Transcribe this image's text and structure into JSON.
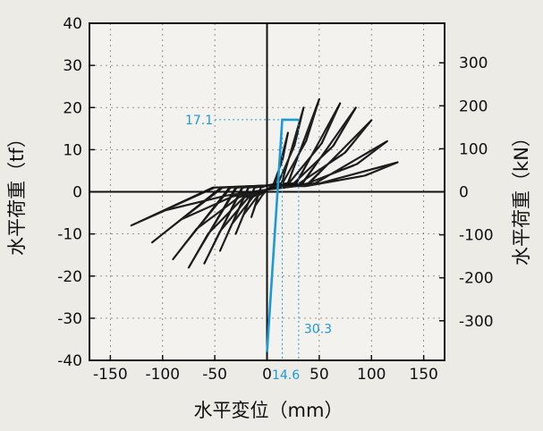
{
  "chart_data": {
    "type": "line",
    "xlabel": "水平変位（mm）",
    "ylabel_left": "水平荷重（tf）",
    "ylabel_right": "水平荷重（kN）",
    "xlim": [
      -170,
      170
    ],
    "ylim_left": [
      -40,
      40
    ],
    "ylim_right": [
      -392,
      392
    ],
    "x_ticks": [
      -150,
      -100,
      -50,
      0,
      50,
      100,
      150
    ],
    "x_tick_labels": [
      "-150",
      "-100",
      "-50",
      "0",
      "50",
      "100",
      "150"
    ],
    "y_ticks_left": [
      -40,
      -30,
      -20,
      -10,
      0,
      10,
      20,
      30,
      40
    ],
    "y_tick_labels_left": [
      "-40",
      "-30",
      "-20",
      "-10",
      "0",
      "10",
      "20",
      "30",
      "40"
    ],
    "y_ticks_right": [
      -300,
      -200,
      -100,
      0,
      100,
      200,
      300
    ],
    "y_tick_labels_right": [
      "-300",
      "-200",
      "-100",
      "0",
      "100",
      "200",
      "300"
    ],
    "grid": true,
    "loop_peaks": [
      {
        "x_pos": 20,
        "y_pos": 14,
        "x_neg": -15,
        "y_neg": -6
      },
      {
        "x_pos": 35,
        "y_pos": 20,
        "x_neg": -30,
        "y_neg": -10
      },
      {
        "x_pos": 50,
        "y_pos": 22,
        "x_neg": -45,
        "y_neg": -14
      },
      {
        "x_pos": 70,
        "y_pos": 21,
        "x_neg": -60,
        "y_neg": -17
      },
      {
        "x_pos": 85,
        "y_pos": 20,
        "x_neg": -75,
        "y_neg": -18
      },
      {
        "x_pos": 100,
        "y_pos": 17,
        "x_neg": -90,
        "y_neg": -16
      },
      {
        "x_pos": 115,
        "y_pos": 12,
        "x_neg": -110,
        "y_neg": -12
      },
      {
        "x_pos": 125,
        "y_pos": 7,
        "x_neg": -130,
        "y_neg": -8
      }
    ],
    "bilinear": {
      "points": [
        [
          0,
          -38
        ],
        [
          14.6,
          17.1
        ],
        [
          30.3,
          17.1
        ]
      ],
      "yield_load_label": "17.1",
      "yield_disp_label": "14.6",
      "ultimate_disp_label": "30.3",
      "color": "#1a9ad6"
    }
  }
}
